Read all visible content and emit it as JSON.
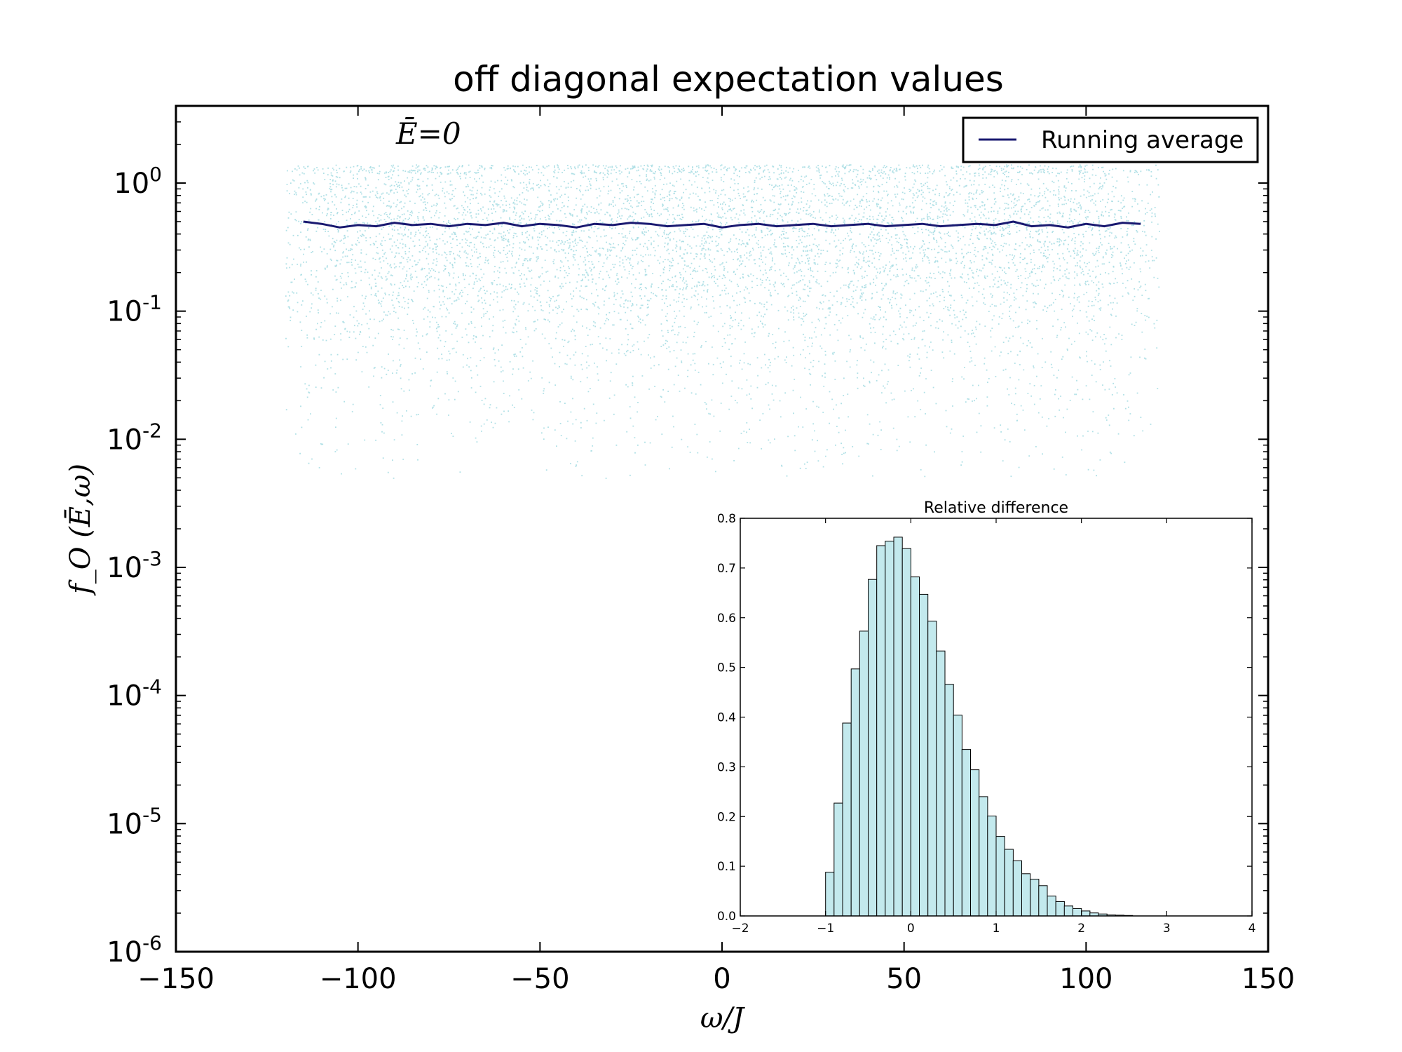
{
  "chart_data": [
    {
      "type": "scatter",
      "title": "off diagonal expectation values",
      "xlabel": "ω/J",
      "ylabel": "f_O (Ē,ω)",
      "annotation": "Ē=0",
      "xlim": [
        -150,
        150
      ],
      "ylim": [
        1e-06,
        4
      ],
      "yscale": "log",
      "x_ticks": [
        -150,
        -100,
        -50,
        0,
        50,
        100,
        150
      ],
      "x_tick_labels": [
        "−150",
        "−100",
        "−50",
        "0",
        "50",
        "100",
        "150"
      ],
      "y_ticks": [
        1e-06,
        1e-05,
        0.0001,
        0.001,
        0.01,
        0.1,
        1
      ],
      "y_tick_bases": [
        "10",
        "10",
        "10",
        "10",
        "10",
        "10",
        "10"
      ],
      "y_tick_exponents": [
        "-6",
        "-5",
        "-4",
        "-3",
        "-2",
        "-1",
        "0"
      ],
      "grid": false,
      "legend": {
        "placement": "top-right",
        "entries": [
          "Running average"
        ]
      },
      "scatter": {
        "color": "#b0e0e6",
        "x_range": [
          -120,
          120
        ],
        "typical_upper": 1.4,
        "typical_lower": 0.005,
        "distribution": "exponential with mean 0.48"
      },
      "series": [
        {
          "name": "Running average",
          "color": "#191970",
          "x": [
            -115,
            -110,
            -105,
            -100,
            -95,
            -90,
            -85,
            -80,
            -75,
            -70,
            -65,
            -60,
            -55,
            -50,
            -45,
            -40,
            -35,
            -30,
            -25,
            -20,
            -15,
            -10,
            -5,
            0,
            5,
            10,
            15,
            20,
            25,
            30,
            35,
            40,
            45,
            50,
            55,
            60,
            65,
            70,
            75,
            80,
            85,
            90,
            95,
            100,
            105,
            110,
            115
          ],
          "values": [
            0.5,
            0.48,
            0.45,
            0.47,
            0.46,
            0.49,
            0.47,
            0.48,
            0.46,
            0.48,
            0.47,
            0.49,
            0.46,
            0.48,
            0.47,
            0.45,
            0.48,
            0.47,
            0.49,
            0.48,
            0.46,
            0.47,
            0.48,
            0.45,
            0.47,
            0.48,
            0.46,
            0.47,
            0.48,
            0.46,
            0.47,
            0.48,
            0.46,
            0.47,
            0.48,
            0.46,
            0.47,
            0.48,
            0.47,
            0.5,
            0.46,
            0.47,
            0.45,
            0.48,
            0.46,
            0.49,
            0.48
          ]
        }
      ]
    },
    {
      "type": "bar",
      "title": "Relative difference",
      "xlim": [
        -2,
        4
      ],
      "ylim": [
        0,
        0.8
      ],
      "x_ticks": [
        -2,
        -1,
        0,
        1,
        2,
        3,
        4
      ],
      "x_tick_labels": [
        "−2",
        "−1",
        "0",
        "1",
        "2",
        "3",
        "4"
      ],
      "y_ticks": [
        0.0,
        0.1,
        0.2,
        0.3,
        0.4,
        0.5,
        0.6,
        0.7,
        0.8
      ],
      "y_tick_labels": [
        "0.0",
        "0.1",
        "0.2",
        "0.3",
        "0.4",
        "0.5",
        "0.6",
        "0.7",
        "0.8"
      ],
      "bar_color": "#c3e9ed",
      "bin_start": -1.0,
      "bin_width": 0.1,
      "values": [
        0.088,
        0.227,
        0.388,
        0.497,
        0.573,
        0.677,
        0.745,
        0.754,
        0.762,
        0.739,
        0.682,
        0.647,
        0.593,
        0.533,
        0.466,
        0.404,
        0.335,
        0.294,
        0.24,
        0.201,
        0.16,
        0.134,
        0.111,
        0.085,
        0.074,
        0.061,
        0.04,
        0.029,
        0.02,
        0.015,
        0.01,
        0.006,
        0.004,
        0.002,
        0.0015,
        0.001
      ]
    }
  ]
}
